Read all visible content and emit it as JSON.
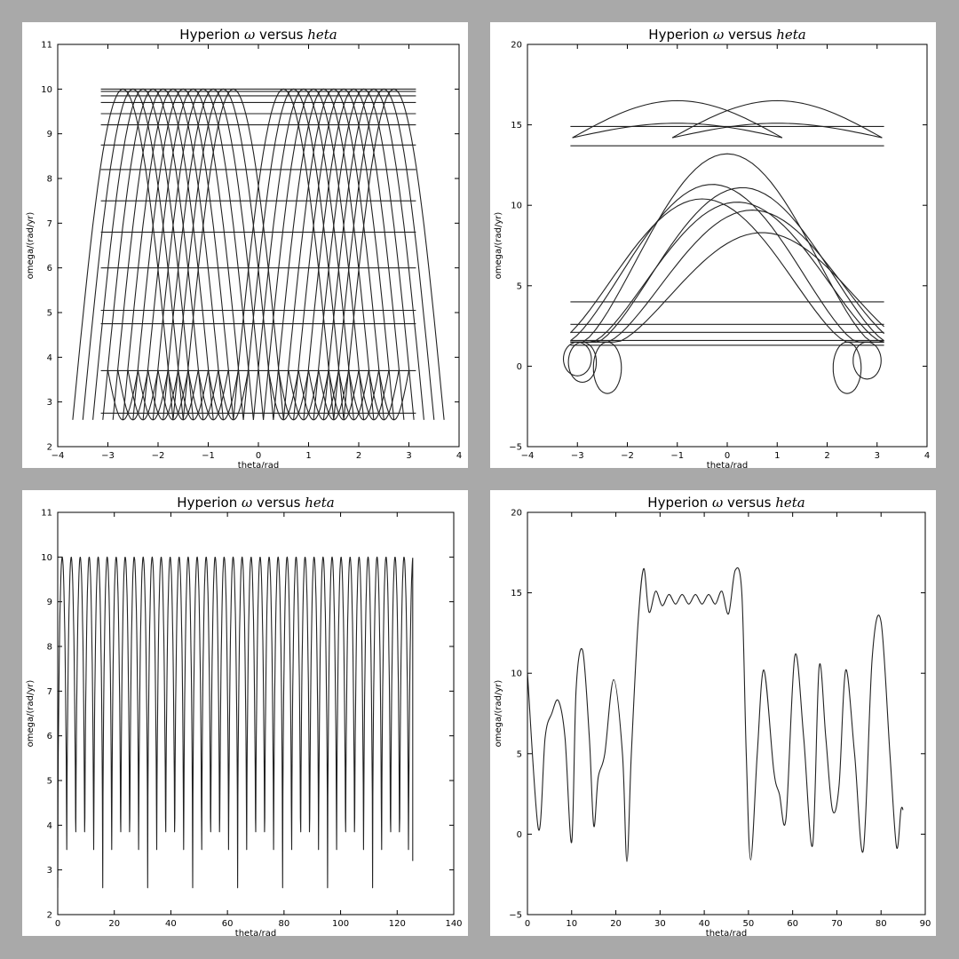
{
  "chart_data": [
    {
      "type": "line",
      "title_prefix": "Hyperion ",
      "title_omega": "ω",
      "title_middle": " versus ",
      "title_theta": "heta",
      "xlabel": "theta/rad",
      "ylabel": "omega/(rad/yr)",
      "xlim": [
        -4,
        4
      ],
      "ylim": [
        2,
        11
      ],
      "xticks": [
        "−4",
        "−3",
        "−2",
        "−1",
        "0",
        "1",
        "2",
        "3",
        "4"
      ],
      "yticks": [
        "2",
        "3",
        "4",
        "5",
        "6",
        "7",
        "8",
        "9",
        "10",
        "11"
      ],
      "series": [
        {
          "x": [
            -3.14,
            3.14,
            -3.14,
            3.14,
            -3.14,
            3.14,
            -3.14,
            3.14,
            -3.14,
            3.14,
            -3.14,
            3.14,
            -3.14,
            3.14,
            -3.14,
            3.14,
            -3.14,
            3.14,
            -3.14,
            3.14,
            -3.14,
            3.14,
            -3.14,
            3.14,
            -3.14,
            3.14,
            -3.14,
            3.14,
            -3.14,
            3.14
          ],
          "y": [
            10.0,
            10.0,
            9.95,
            9.95,
            9.85,
            9.85,
            9.7,
            9.7,
            9.45,
            9.45,
            9.2,
            9.2,
            8.75,
            8.75,
            8.2,
            8.2,
            7.5,
            7.5,
            6.8,
            6.8,
            6.0,
            6.0,
            5.05,
            5.05,
            4.75,
            4.75,
            3.7,
            3.7,
            2.75,
            2.75
          ]
        }
      ],
      "hump_peaks": [
        -2.7,
        -2.5,
        -2.3,
        -2.1,
        -1.9,
        -1.7,
        -1.5,
        -1.3,
        -1.1,
        -0.9,
        -0.7,
        -0.5,
        0.5,
        0.7,
        0.9,
        1.1,
        1.3,
        1.5,
        1.7,
        1.9,
        2.1,
        2.3,
        2.5,
        2.7
      ],
      "omega_min": 2.6,
      "omega_max": 10.0
    },
    {
      "type": "line",
      "title_prefix": "Hyperion ",
      "title_omega": "ω",
      "title_middle": " versus ",
      "title_theta": "heta",
      "xlabel": "theta/rad",
      "ylabel": "omega/(rad/yr)",
      "xlim": [
        -4,
        4
      ],
      "ylim": [
        -5,
        20
      ],
      "xticks": [
        "−4",
        "−3",
        "−2",
        "−1",
        "0",
        "1",
        "2",
        "3",
        "4"
      ],
      "yticks": [
        "−5",
        "0",
        "5",
        "10",
        "15",
        "20"
      ],
      "series": [
        {
          "x": [
            -3.14,
            3.14,
            -3.14,
            3.14,
            -3.14,
            3.14,
            -3.14,
            3.14,
            -3.14,
            3.14,
            -3.14,
            3.14,
            -3.14,
            3.14
          ],
          "y": [
            14.9,
            14.9,
            13.7,
            13.7,
            4.0,
            4.0,
            2.6,
            2.6,
            2.1,
            2.1,
            1.6,
            1.6,
            1.3,
            1.3
          ]
        }
      ],
      "upper_arches": [
        {
          "center": -1.0,
          "peak": 16.5
        },
        {
          "center": 1.0,
          "peak": 16.5
        },
        {
          "center": -1.0,
          "peak": 15.1
        },
        {
          "center": 1.0,
          "peak": 15.1
        }
      ],
      "lower_arches": [
        {
          "center": 0.0,
          "peak": 13.2
        },
        {
          "center": -0.3,
          "peak": 11.3
        },
        {
          "center": 0.3,
          "peak": 11.1
        },
        {
          "center": -0.5,
          "peak": 10.4
        },
        {
          "center": 0.2,
          "peak": 10.2
        },
        {
          "center": 0.5,
          "peak": 9.7
        },
        {
          "center": 0.7,
          "peak": 8.3
        }
      ],
      "loops": [
        {
          "center": -3.0,
          "min": -0.6
        },
        {
          "center": -2.9,
          "min": -1.0
        },
        {
          "center": -2.4,
          "min": -1.7
        },
        {
          "center": 2.4,
          "min": -1.7
        },
        {
          "center": 2.8,
          "min": -0.8
        }
      ]
    },
    {
      "type": "line",
      "title_prefix": "Hyperion ",
      "title_omega": "ω",
      "title_middle": " versus ",
      "title_theta": "heta",
      "xlabel": "theta/rad",
      "ylabel": "omega/(rad/yr)",
      "xlim": [
        0,
        140
      ],
      "ylim": [
        2,
        11
      ],
      "xticks": [
        "0",
        "20",
        "40",
        "60",
        "80",
        "100",
        "120",
        "140"
      ],
      "yticks": [
        "2",
        "3",
        "4",
        "5",
        "6",
        "7",
        "8",
        "9",
        "10",
        "11"
      ],
      "period": 3.18,
      "theta_end": 125.5,
      "omega_min": 2.6,
      "omega_max": 10.0,
      "end_value": 3.2
    },
    {
      "type": "line",
      "title_prefix": "Hyperion ",
      "title_omega": "ω",
      "title_middle": " versus ",
      "title_theta": "heta",
      "xlabel": "theta/rad",
      "ylabel": "omega/(rad/yr)",
      "xlim": [
        0,
        90
      ],
      "ylim": [
        -5,
        20
      ],
      "xticks": [
        "0",
        "10",
        "20",
        "30",
        "40",
        "50",
        "60",
        "70",
        "80",
        "90"
      ],
      "yticks": [
        "−5",
        "0",
        "5",
        "10",
        "15",
        "20"
      ],
      "series": [
        {
          "x": [
            0,
            2.5,
            4,
            5.5,
            7,
            8.5,
            10,
            11,
            12.5,
            14,
            15,
            16,
            17.5,
            19.5,
            21.5,
            22.5,
            23.5,
            25,
            26.3,
            27.5,
            29,
            30.5,
            32,
            33.5,
            35,
            36.5,
            38,
            39.5,
            41,
            42.5,
            44,
            45.5,
            47,
            48.5,
            49.5,
            50.5,
            52,
            53.5,
            55.7,
            57,
            58.5,
            60.5,
            62.5,
            64.5,
            66,
            67.5,
            69,
            70.5,
            72,
            74,
            76,
            78,
            80,
            82,
            83.5,
            84.5,
            85
          ],
          "y": [
            10.0,
            0.3,
            6.0,
            7.5,
            8.3,
            6.0,
            -0.5,
            9.0,
            11.4,
            6.0,
            0.5,
            3.5,
            5.0,
            9.6,
            5.0,
            -1.7,
            5.0,
            13.0,
            16.5,
            13.8,
            15.1,
            14.2,
            14.9,
            14.3,
            14.9,
            14.3,
            14.9,
            14.3,
            14.9,
            14.3,
            15.1,
            13.7,
            16.4,
            15.0,
            5.0,
            -1.6,
            5.0,
            10.2,
            4.0,
            2.5,
            1.0,
            11.1,
            6.0,
            -0.7,
            10.4,
            6.0,
            1.5,
            3.0,
            10.2,
            5.0,
            -1.0,
            11.0,
            13.2,
            5.0,
            -0.8,
            1.5,
            1.5
          ]
        }
      ]
    }
  ]
}
